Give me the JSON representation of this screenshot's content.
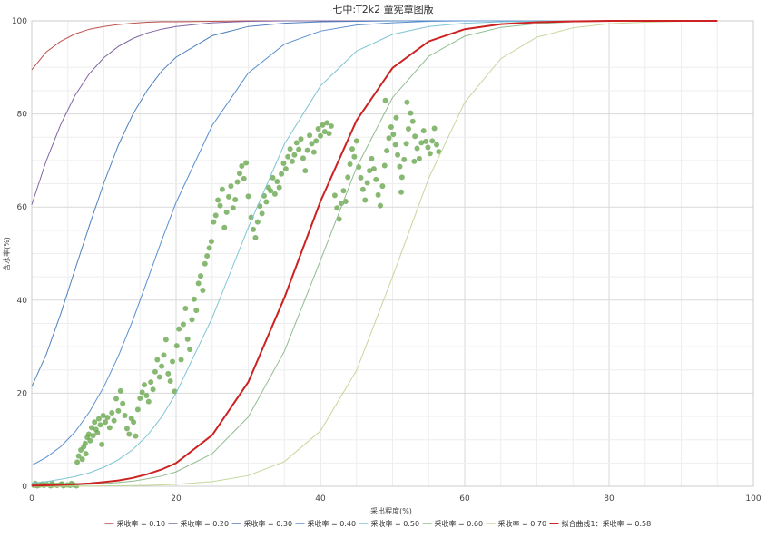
{
  "chart_data": {
    "type": "line",
    "title": "七中:T2k2 童宪章图版",
    "xlabel": "采出程度(%)",
    "ylabel": "含水率(%)",
    "xlim": [
      0,
      100
    ],
    "ylim": [
      0,
      100
    ],
    "xticks": [
      0,
      20,
      40,
      60,
      80,
      100
    ],
    "yticks": [
      0,
      20,
      40,
      60,
      80,
      100
    ],
    "grid": true,
    "legend_position": "bottom",
    "series": [
      {
        "name": "采收率 = 0.10",
        "color": "#c0504d",
        "x": [
          0,
          2,
          4,
          6,
          8,
          10,
          12,
          14,
          16,
          18,
          20,
          25,
          30,
          35,
          40,
          45,
          50,
          55,
          60,
          65,
          70,
          75,
          80,
          85,
          90,
          95
        ],
        "y": [
          89.5,
          93.3,
          95.6,
          97.2,
          98.2,
          98.8,
          99.2,
          99.5,
          99.7,
          99.8,
          99.8,
          99.9,
          100,
          100,
          100,
          100,
          100,
          100,
          100,
          100,
          100,
          100,
          100,
          100,
          100,
          100
        ]
      },
      {
        "name": "采收率 = 0.20",
        "color": "#8064a2",
        "x": [
          0,
          2,
          4,
          6,
          8,
          10,
          12,
          14,
          16,
          18,
          20,
          25,
          30,
          35,
          40,
          45,
          50,
          55,
          60,
          65,
          70,
          75,
          80,
          85,
          90,
          95
        ],
        "y": [
          60.5,
          69.9,
          77.7,
          84.0,
          88.7,
          92.1,
          94.5,
          96.2,
          97.4,
          98.2,
          98.8,
          99.6,
          99.9,
          100,
          100,
          100,
          100,
          100,
          100,
          100,
          100,
          100,
          100,
          100,
          100,
          100
        ]
      },
      {
        "name": "采收率 = 0.30",
        "color": "#4f81bd",
        "x": [
          0,
          2,
          4,
          6,
          8,
          10,
          12,
          14,
          16,
          18,
          20,
          25,
          30,
          35,
          40,
          45,
          50,
          55,
          60,
          65,
          70,
          75,
          80,
          85,
          90,
          95
        ],
        "y": [
          21.4,
          28.3,
          37.0,
          46.6,
          56.1,
          65.2,
          73.3,
          79.9,
          85.1,
          89.2,
          92.2,
          96.8,
          98.8,
          99.5,
          99.8,
          99.9,
          100,
          100,
          100,
          100,
          100,
          100,
          100,
          100,
          100,
          100
        ]
      },
      {
        "name": "采收率 = 0.40",
        "color": "#5a8fcf",
        "x": [
          0,
          2,
          4,
          6,
          8,
          10,
          12,
          14,
          16,
          18,
          20,
          25,
          30,
          35,
          40,
          45,
          50,
          55,
          60,
          65,
          70,
          75,
          80,
          85,
          90,
          95
        ],
        "y": [
          4.5,
          6.2,
          8.5,
          11.7,
          16.0,
          21.4,
          28.0,
          35.7,
          44.2,
          52.8,
          61.0,
          77.5,
          88.8,
          95.0,
          97.8,
          99.1,
          99.6,
          99.9,
          100,
          100,
          100,
          100,
          100,
          100,
          100,
          100
        ]
      },
      {
        "name": "采收率 = 0.50",
        "color": "#7fc4d4",
        "x": [
          0,
          2,
          4,
          6,
          8,
          10,
          12,
          14,
          16,
          18,
          20,
          25,
          30,
          35,
          40,
          45,
          50,
          55,
          60,
          65,
          70,
          75,
          80,
          85,
          90,
          95
        ],
        "y": [
          0.7,
          1.0,
          1.5,
          2.1,
          2.9,
          4.1,
          5.7,
          7.9,
          10.9,
          14.9,
          20.0,
          36.2,
          55.6,
          73.5,
          86.0,
          93.5,
          97.1,
          98.8,
          99.5,
          99.8,
          99.9,
          100,
          100,
          100,
          100,
          100
        ]
      },
      {
        "name": "采收率 = 0.60",
        "color": "#8fbc8f",
        "x": [
          0,
          2,
          4,
          6,
          8,
          10,
          12,
          14,
          16,
          18,
          20,
          25,
          30,
          35,
          40,
          45,
          50,
          55,
          60,
          65,
          70,
          75,
          80,
          85,
          90,
          95
        ],
        "y": [
          0.1,
          0.15,
          0.2,
          0.3,
          0.4,
          0.6,
          0.8,
          1.1,
          1.6,
          2.2,
          3.1,
          7.0,
          14.9,
          29.0,
          48.5,
          68.5,
          83.5,
          92.4,
          96.7,
          98.6,
          99.4,
          99.8,
          99.9,
          100,
          100,
          100
        ]
      },
      {
        "name": "采收率 = 0.70",
        "color": "#c4d79b",
        "x": [
          0,
          2,
          4,
          6,
          8,
          10,
          12,
          14,
          16,
          18,
          20,
          25,
          30,
          35,
          40,
          45,
          50,
          55,
          60,
          65,
          70,
          75,
          80,
          85,
          90,
          95
        ],
        "y": [
          0,
          0,
          0,
          0.05,
          0.05,
          0.1,
          0.1,
          0.15,
          0.2,
          0.3,
          0.4,
          1.0,
          2.3,
          5.3,
          11.9,
          24.9,
          45.0,
          66.2,
          82.5,
          91.9,
          96.5,
          98.5,
          99.4,
          99.7,
          99.9,
          100
        ]
      },
      {
        "name": "拟合曲线1：采收率 = 0.58",
        "color": "#cc2222",
        "bold": true,
        "x": [
          0,
          2,
          4,
          6,
          8,
          10,
          12,
          14,
          16,
          18,
          20,
          25,
          30,
          35,
          40,
          45,
          50,
          55,
          60,
          65,
          70,
          75,
          80,
          85,
          90,
          95
        ],
        "y": [
          0.15,
          0.2,
          0.3,
          0.45,
          0.6,
          0.9,
          1.25,
          1.8,
          2.6,
          3.6,
          5.0,
          11.0,
          22.4,
          40.5,
          61.2,
          78.6,
          89.9,
          95.6,
          98.2,
          99.3,
          99.7,
          99.9,
          100,
          100,
          100,
          100
        ]
      }
    ],
    "scatter": {
      "name": "",
      "color": "#6aa84f",
      "points": [
        [
          0.3,
          0.2
        ],
        [
          0.8,
          0.1
        ],
        [
          1.2,
          0.3
        ],
        [
          1.7,
          0.2
        ],
        [
          2.1,
          0.4
        ],
        [
          2.6,
          0.1
        ],
        [
          3.0,
          0.3
        ],
        [
          3.5,
          0.2
        ],
        [
          4.0,
          0.4
        ],
        [
          4.4,
          0.1
        ],
        [
          4.9,
          0.3
        ],
        [
          5.3,
          0.2
        ],
        [
          5.8,
          0.3
        ],
        [
          6.2,
          0.1
        ],
        [
          0.5,
          0.6
        ],
        [
          1.5,
          0.5
        ],
        [
          2.8,
          0.6
        ],
        [
          4.2,
          0.5
        ],
        [
          5.5,
          0.6
        ],
        [
          6.3,
          5.2
        ],
        [
          6.5,
          6.5
        ],
        [
          6.8,
          7.8
        ],
        [
          7.0,
          5.8
        ],
        [
          7.2,
          8.5
        ],
        [
          7.4,
          9.2
        ],
        [
          7.5,
          7.0
        ],
        [
          7.7,
          10.5
        ],
        [
          7.9,
          11.2
        ],
        [
          8.1,
          9.8
        ],
        [
          8.3,
          12.6
        ],
        [
          8.5,
          10.9
        ],
        [
          8.7,
          13.8
        ],
        [
          8.9,
          12.2
        ],
        [
          9.1,
          11.5
        ],
        [
          9.3,
          14.5
        ],
        [
          9.5,
          13.2
        ],
        [
          9.7,
          9.0
        ],
        [
          9.9,
          15.2
        ],
        [
          10.2,
          13.8
        ],
        [
          10.5,
          14.8
        ],
        [
          10.8,
          12.6
        ],
        [
          11.1,
          15.8
        ],
        [
          11.4,
          14.1
        ],
        [
          11.7,
          18.8
        ],
        [
          12.0,
          16.2
        ],
        [
          12.3,
          20.5
        ],
        [
          12.6,
          17.8
        ],
        [
          12.9,
          15.2
        ],
        [
          13.2,
          12.4
        ],
        [
          13.5,
          11.2
        ],
        [
          13.8,
          14.6
        ],
        [
          14.1,
          13.8
        ],
        [
          14.4,
          10.8
        ],
        [
          14.7,
          16.5
        ],
        [
          15.0,
          18.9
        ],
        [
          15.3,
          20.2
        ],
        [
          15.6,
          21.8
        ],
        [
          15.9,
          19.5
        ],
        [
          16.2,
          18.2
        ],
        [
          16.5,
          22.4
        ],
        [
          16.8,
          20.8
        ],
        [
          17.1,
          24.6
        ],
        [
          17.4,
          27.2
        ],
        [
          17.7,
          23.5
        ],
        [
          18.0,
          25.8
        ],
        [
          18.3,
          28.2
        ],
        [
          18.6,
          31.5
        ],
        [
          18.9,
          24.2
        ],
        [
          19.2,
          22.6
        ],
        [
          19.5,
          26.8
        ],
        [
          19.8,
          20.4
        ],
        [
          20.1,
          30.2
        ],
        [
          20.4,
          33.8
        ],
        [
          20.7,
          27.2
        ],
        [
          21.0,
          34.8
        ],
        [
          21.3,
          38.2
        ],
        [
          21.6,
          31.6
        ],
        [
          21.9,
          29.4
        ],
        [
          22.2,
          35.8
        ],
        [
          22.5,
          40.2
        ],
        [
          22.8,
          37.8
        ],
        [
          23.1,
          43.6
        ],
        [
          23.4,
          45.2
        ],
        [
          23.7,
          42.1
        ],
        [
          24.0,
          47.8
        ],
        [
          24.3,
          49.5
        ],
        [
          24.6,
          51.2
        ],
        [
          24.9,
          52.6
        ],
        [
          25.2,
          56.8
        ],
        [
          25.5,
          58.2
        ],
        [
          25.8,
          61.5
        ],
        [
          26.1,
          60.3
        ],
        [
          26.4,
          63.8
        ],
        [
          26.7,
          55.6
        ],
        [
          27.0,
          58.9
        ],
        [
          27.3,
          62.2
        ],
        [
          27.6,
          64.5
        ],
        [
          27.9,
          59.8
        ],
        [
          28.2,
          61.6
        ],
        [
          28.5,
          65.4
        ],
        [
          28.8,
          67.2
        ],
        [
          29.1,
          68.8
        ],
        [
          29.4,
          66.1
        ],
        [
          29.7,
          69.5
        ],
        [
          30.0,
          62.3
        ],
        [
          30.4,
          57.8
        ],
        [
          30.7,
          55.2
        ],
        [
          31.0,
          53.4
        ],
        [
          31.3,
          56.8
        ],
        [
          31.6,
          60.2
        ],
        [
          31.9,
          58.6
        ],
        [
          32.2,
          62.4
        ],
        [
          32.5,
          61.1
        ],
        [
          32.8,
          64.2
        ],
        [
          33.1,
          63.5
        ],
        [
          33.4,
          66.3
        ],
        [
          33.7,
          62.8
        ],
        [
          34.0,
          65.5
        ],
        [
          34.3,
          64.2
        ],
        [
          34.6,
          67.1
        ],
        [
          34.9,
          69.4
        ],
        [
          35.2,
          68.2
        ],
        [
          35.5,
          70.8
        ],
        [
          35.8,
          72.5
        ],
        [
          36.1,
          69.8
        ],
        [
          36.4,
          71.2
        ],
        [
          36.7,
          73.8
        ],
        [
          37.0,
          72.4
        ],
        [
          37.3,
          74.6
        ],
        [
          37.6,
          70.5
        ],
        [
          37.9,
          67.8
        ],
        [
          38.2,
          72.2
        ],
        [
          38.5,
          75.4
        ],
        [
          38.8,
          73.6
        ],
        [
          39.1,
          71.8
        ],
        [
          39.4,
          74.2
        ],
        [
          39.7,
          76.8
        ],
        [
          40.0,
          75.3
        ],
        [
          40.3,
          77.6
        ],
        [
          40.6,
          76.2
        ],
        [
          40.9,
          78.1
        ],
        [
          41.2,
          75.8
        ],
        [
          41.5,
          77.4
        ],
        [
          42.0,
          62.5
        ],
        [
          42.3,
          59.8
        ],
        [
          42.6,
          57.4
        ],
        [
          42.9,
          60.8
        ],
        [
          43.2,
          63.5
        ],
        [
          43.5,
          61.2
        ],
        [
          43.8,
          66.4
        ],
        [
          44.1,
          69.2
        ],
        [
          44.4,
          72.5
        ],
        [
          44.7,
          70.8
        ],
        [
          45.0,
          74.2
        ],
        [
          45.3,
          68.6
        ],
        [
          45.6,
          66.3
        ],
        [
          45.9,
          63.8
        ],
        [
          46.2,
          61.5
        ],
        [
          46.5,
          65.2
        ],
        [
          46.8,
          67.8
        ],
        [
          47.1,
          70.4
        ],
        [
          47.4,
          68.2
        ],
        [
          47.7,
          65.9
        ],
        [
          48.0,
          62.6
        ],
        [
          48.3,
          60.3
        ],
        [
          48.6,
          64.5
        ],
        [
          48.9,
          68.9
        ],
        [
          49.2,
          72.1
        ],
        [
          49.5,
          74.8
        ],
        [
          49.8,
          77.2
        ],
        [
          50.1,
          75.6
        ],
        [
          50.4,
          73.4
        ],
        [
          50.7,
          71.2
        ],
        [
          51.0,
          68.7
        ],
        [
          51.3,
          66.4
        ],
        [
          51.6,
          70.2
        ],
        [
          51.9,
          73.6
        ],
        [
          52.2,
          76.8
        ],
        [
          52.5,
          80.2
        ],
        [
          52.8,
          78.4
        ],
        [
          53.1,
          75.2
        ],
        [
          53.4,
          72.6
        ],
        [
          53.7,
          70.4
        ],
        [
          54.0,
          73.8
        ],
        [
          54.3,
          76.4
        ],
        [
          54.6,
          74.1
        ],
        [
          54.9,
          72.8
        ],
        [
          55.2,
          71.5
        ],
        [
          55.5,
          74.2
        ],
        [
          55.8,
          76.9
        ],
        [
          56.1,
          73.4
        ],
        [
          56.4,
          71.9
        ],
        [
          52.0,
          82.5
        ],
        [
          51.2,
          63.2
        ],
        [
          49.0,
          82.9
        ],
        [
          53.0,
          69.8
        ],
        [
          50.5,
          79.2
        ]
      ]
    }
  }
}
